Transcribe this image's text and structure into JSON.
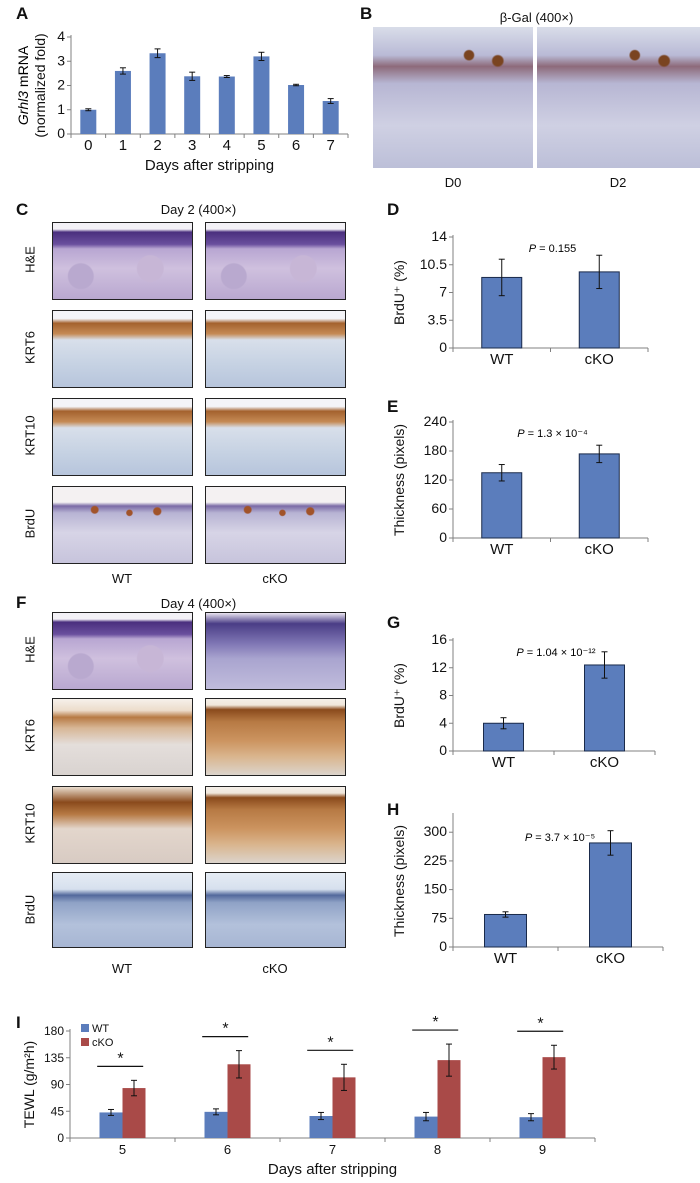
{
  "colors": {
    "bar_blue": "#5b7dbc",
    "bar_red": "#a94a48",
    "axis": "#808080"
  },
  "panels": {
    "A": {
      "label": "A"
    },
    "B": {
      "label": "B",
      "title": "β-Gal (400×)",
      "columns": [
        "D0",
        "D2"
      ]
    },
    "C": {
      "label": "C",
      "title": "Day 2 (400×)",
      "rows": [
        "H&E",
        "KRT6",
        "KRT10",
        "BrdU"
      ],
      "columns": [
        "WT",
        "cKO"
      ]
    },
    "D": {
      "label": "D"
    },
    "E": {
      "label": "E"
    },
    "F": {
      "label": "F",
      "title": "Day 4 (400×)",
      "rows": [
        "H&E",
        "KRT6",
        "KRT10",
        "BrdU"
      ],
      "columns": [
        "WT",
        "cKO"
      ]
    },
    "G": {
      "label": "G"
    },
    "H": {
      "label": "H"
    },
    "I": {
      "label": "I"
    }
  },
  "chart_data": [
    {
      "id": "A",
      "type": "bar",
      "ylabel_italic": "Grhl3",
      "ylabel": " mRNA",
      "ylabel2": "(normalized fold)",
      "xlabel": "Days after stripping",
      "categories": [
        "0",
        "1",
        "2",
        "3",
        "4",
        "5",
        "6",
        "7"
      ],
      "values": [
        1.0,
        2.6,
        3.33,
        2.38,
        2.37,
        3.2,
        2.02,
        1.36
      ],
      "errors": [
        0.04,
        0.13,
        0.18,
        0.17,
        0.04,
        0.17,
        0.03,
        0.1
      ],
      "ylim": [
        0,
        4
      ],
      "yticks": [
        "0",
        "1",
        "2",
        "3",
        "4"
      ],
      "grid": false
    },
    {
      "id": "D",
      "type": "bar",
      "ylabel": "BrdU⁺ (%)",
      "categories": [
        "WT",
        "cKO"
      ],
      "values": [
        8.9,
        9.6
      ],
      "errors": [
        2.3,
        2.1
      ],
      "ylim": [
        0,
        14
      ],
      "yticks": [
        "0",
        "3.5",
        "7",
        "10.5",
        "14"
      ],
      "p_label": "P",
      "p_value": " = 0.155",
      "grid": false
    },
    {
      "id": "E",
      "type": "bar",
      "ylabel": "Thickness (pixels)",
      "categories": [
        "WT",
        "cKO"
      ],
      "values": [
        135,
        174
      ],
      "errors": [
        17,
        18
      ],
      "ylim": [
        0,
        240
      ],
      "yticks": [
        "0",
        "60",
        "120",
        "180",
        "240"
      ],
      "p_label": "P",
      "p_value": " = 1.3 × 10⁻⁴",
      "grid": false
    },
    {
      "id": "G",
      "type": "bar",
      "ylabel": "BrdU⁺ (%)",
      "categories": [
        "WT",
        "cKO"
      ],
      "values": [
        4.0,
        12.4
      ],
      "errors": [
        0.8,
        1.9
      ],
      "ylim": [
        0,
        16
      ],
      "yticks": [
        "0",
        "4",
        "8",
        "12",
        "16"
      ],
      "p_label": "P",
      "p_value": " = 1.04 × 10⁻¹²",
      "grid": false
    },
    {
      "id": "H",
      "type": "bar",
      "ylabel": "Thickness (pixels)",
      "categories": [
        "WT",
        "cKO"
      ],
      "values": [
        85,
        272
      ],
      "errors": [
        7,
        32
      ],
      "ylim": [
        0,
        345
      ],
      "yticks": [
        "0",
        "75",
        "150",
        "225",
        "300"
      ],
      "p_label": "P",
      "p_value": " = 3.7 × 10⁻⁵",
      "grid": false
    },
    {
      "id": "I",
      "type": "bar",
      "ylabel": "TEWL (g/m²h)",
      "xlabel": "Days after stripping",
      "categories": [
        "5",
        "6",
        "7",
        "8",
        "9"
      ],
      "series": [
        {
          "name": "WT",
          "values": [
            43,
            44,
            37,
            36,
            35
          ],
          "errors": [
            5,
            5,
            6,
            7,
            6
          ]
        },
        {
          "name": "cKO",
          "values": [
            84,
            124,
            102,
            131,
            136
          ],
          "errors": [
            13,
            23,
            22,
            27,
            20
          ]
        }
      ],
      "significance": [
        "*",
        "*",
        "*",
        "*",
        "*"
      ],
      "ylim": [
        0,
        180
      ],
      "yticks": [
        "0",
        "45",
        "90",
        "135",
        "180"
      ],
      "legend": "top-left",
      "grid": false
    }
  ]
}
